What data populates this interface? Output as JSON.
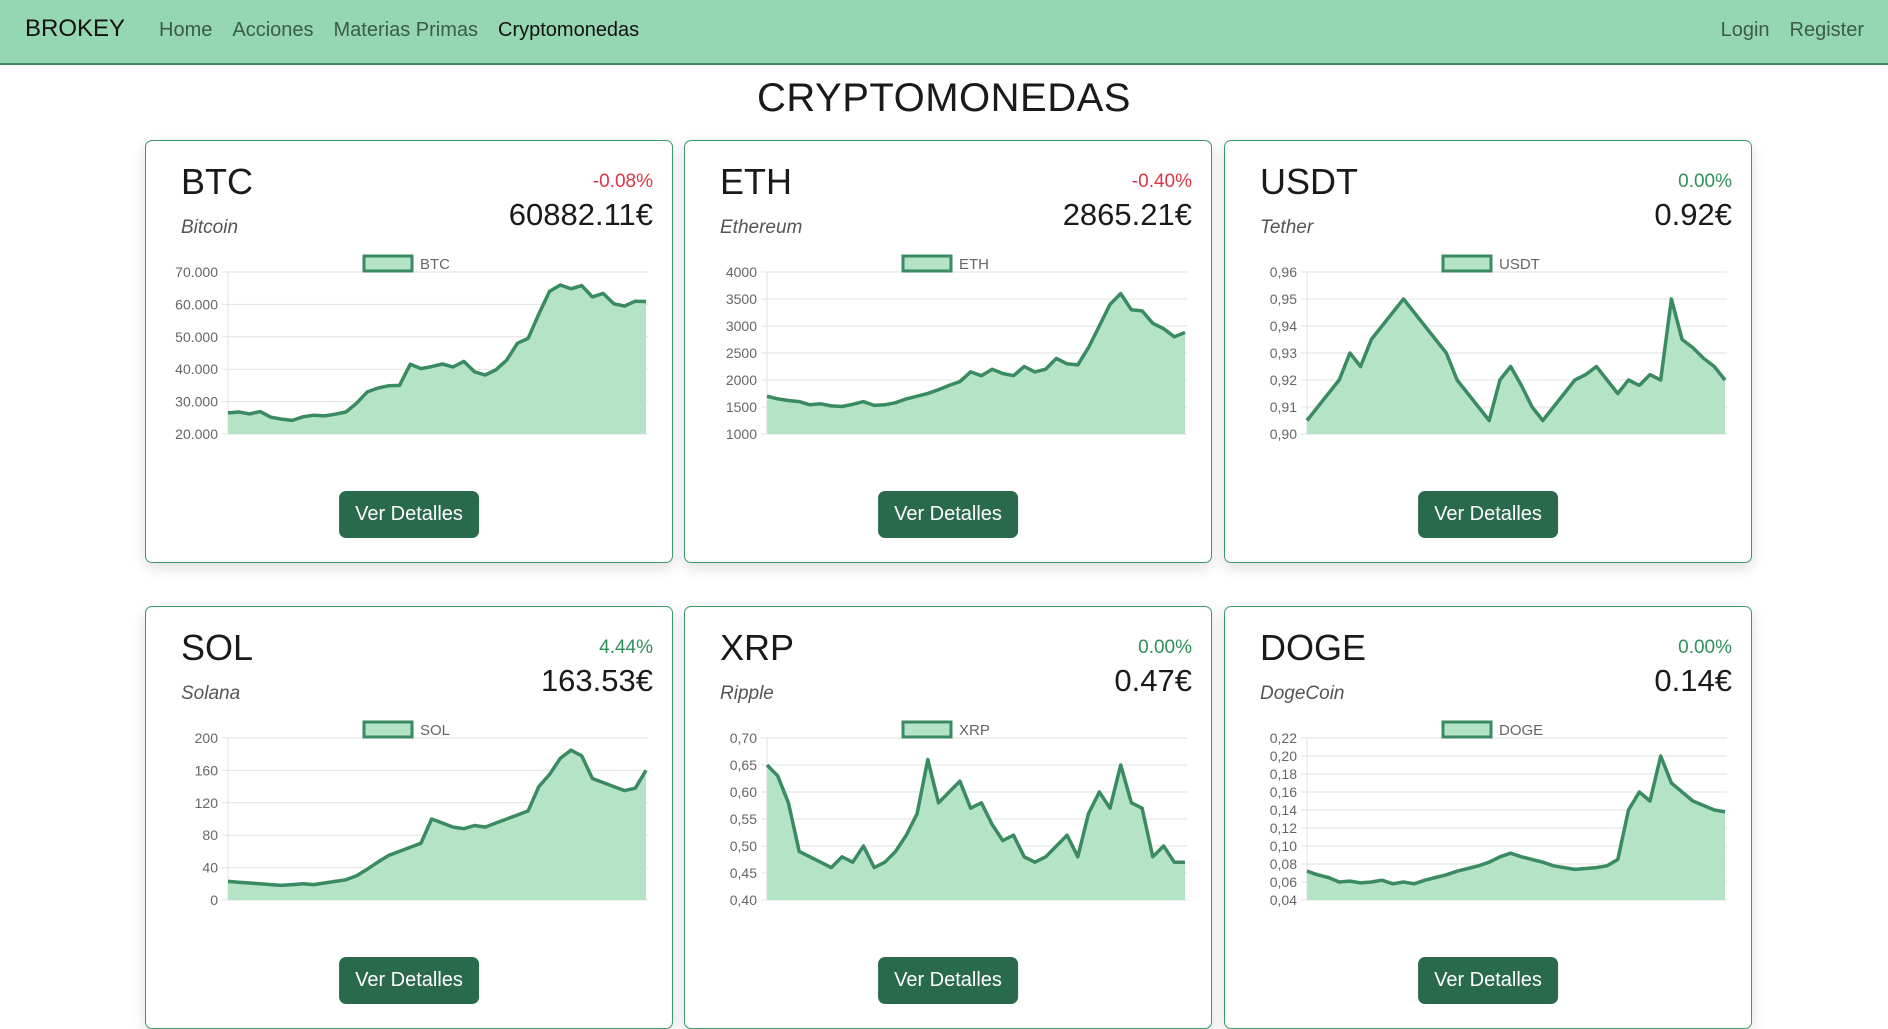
{
  "navbar": {
    "brand": "BROKEY",
    "links": [
      {
        "label": "Home"
      },
      {
        "label": "Acciones"
      },
      {
        "label": "Materias Primas"
      },
      {
        "label": "Cryptomonedas"
      }
    ],
    "right_links": [
      {
        "label": "Login"
      },
      {
        "label": "Register"
      }
    ]
  },
  "page": {
    "title": "CRYPTOMONEDAS"
  },
  "colors": {
    "accent": "#2a6a4c",
    "navbar": "#96d7b3",
    "line": "#3a8a62",
    "fill": "#b4e3c6",
    "negative": "#dc3545",
    "positive": "#2f8f5a"
  },
  "cards": [
    {
      "symbol": "BTC",
      "name": "Bitcoin",
      "change": "-0.08%",
      "change_sign": "neg",
      "price": "60882.11€",
      "button": "Ver Detalles"
    },
    {
      "symbol": "ETH",
      "name": "Ethereum",
      "change": "-0.40%",
      "change_sign": "neg",
      "price": "2865.21€",
      "button": "Ver Detalles"
    },
    {
      "symbol": "USDT",
      "name": "Tether",
      "change": "0.00%",
      "change_sign": "pos",
      "price": "0.92€",
      "button": "Ver Detalles"
    },
    {
      "symbol": "SOL",
      "name": "Solana",
      "change": "4.44%",
      "change_sign": "pos",
      "price": "163.53€",
      "button": "Ver Detalles"
    },
    {
      "symbol": "XRP",
      "name": "Ripple",
      "change": "0.00%",
      "change_sign": "pos",
      "price": "0.47€",
      "button": "Ver Detalles"
    },
    {
      "symbol": "DOGE",
      "name": "DogeCoin",
      "change": "0.00%",
      "change_sign": "pos",
      "price": "0.14€",
      "button": "Ver Detalles"
    }
  ],
  "chart_data": [
    {
      "type": "area",
      "series": [
        {
          "name": "BTC",
          "values": [
            26500,
            26800,
            26200,
            26900,
            25200,
            24600,
            24200,
            25300,
            25800,
            25600,
            26100,
            26800,
            29500,
            33000,
            34200,
            34900,
            35000,
            41500,
            40200,
            40800,
            41600,
            40700,
            42400,
            39200,
            38200,
            39800,
            42800,
            48000,
            49500,
            57000,
            64000,
            66000,
            64800,
            65800,
            62300,
            63400,
            60200,
            59500,
            61000,
            60900
          ]
        }
      ],
      "ylim": [
        20000,
        70000
      ],
      "yticks": [
        "20.000",
        "30.000",
        "40.000",
        "50.000",
        "60.000",
        "70.000"
      ]
    },
    {
      "type": "area",
      "series": [
        {
          "name": "ETH",
          "values": [
            1700,
            1650,
            1620,
            1600,
            1540,
            1560,
            1520,
            1510,
            1550,
            1600,
            1530,
            1540,
            1580,
            1650,
            1700,
            1750,
            1820,
            1900,
            1970,
            2150,
            2080,
            2200,
            2120,
            2080,
            2250,
            2150,
            2200,
            2400,
            2300,
            2280,
            2600,
            3000,
            3400,
            3600,
            3300,
            3280,
            3050,
            2950,
            2800,
            2880
          ]
        }
      ],
      "ylim": [
        1000,
        4000
      ],
      "yticks": [
        "1000",
        "1500",
        "2000",
        "2500",
        "3000",
        "3500",
        "4000"
      ]
    },
    {
      "type": "area",
      "series": [
        {
          "name": "USDT",
          "values": [
            0.905,
            0.91,
            0.915,
            0.92,
            0.93,
            0.925,
            0.935,
            0.94,
            0.945,
            0.95,
            0.945,
            0.94,
            0.935,
            0.93,
            0.92,
            0.915,
            0.91,
            0.905,
            0.92,
            0.925,
            0.918,
            0.91,
            0.905,
            0.91,
            0.915,
            0.92,
            0.922,
            0.925,
            0.92,
            0.915,
            0.92,
            0.918,
            0.922,
            0.92,
            0.95,
            0.935,
            0.932,
            0.928,
            0.925,
            0.92
          ]
        }
      ],
      "ylim": [
        0.9,
        0.96
      ],
      "yticks": [
        "0,90",
        "0,91",
        "0,92",
        "0,93",
        "0,94",
        "0,95",
        "0,96"
      ]
    },
    {
      "type": "area",
      "series": [
        {
          "name": "SOL",
          "values": [
            23,
            22,
            21,
            20,
            19,
            18,
            19,
            20,
            19,
            21,
            23,
            25,
            30,
            38,
            47,
            55,
            60,
            65,
            70,
            100,
            95,
            90,
            88,
            92,
            90,
            95,
            100,
            105,
            110,
            140,
            155,
            175,
            185,
            178,
            150,
            145,
            140,
            135,
            138,
            160
          ]
        }
      ],
      "ylim": [
        0,
        200
      ],
      "yticks": [
        "0",
        "40",
        "80",
        "120",
        "160",
        "200"
      ]
    },
    {
      "type": "area",
      "series": [
        {
          "name": "XRP",
          "values": [
            0.65,
            0.63,
            0.58,
            0.49,
            0.48,
            0.47,
            0.46,
            0.48,
            0.47,
            0.5,
            0.46,
            0.47,
            0.49,
            0.52,
            0.56,
            0.66,
            0.58,
            0.6,
            0.62,
            0.57,
            0.58,
            0.54,
            0.51,
            0.52,
            0.48,
            0.47,
            0.48,
            0.5,
            0.52,
            0.48,
            0.56,
            0.6,
            0.57,
            0.65,
            0.58,
            0.57,
            0.48,
            0.5,
            0.47,
            0.47
          ]
        }
      ],
      "ylim": [
        0.4,
        0.7
      ],
      "yticks": [
        "0,40",
        "0,45",
        "0,50",
        "0,55",
        "0,60",
        "0,65",
        "0,70"
      ]
    },
    {
      "type": "area",
      "series": [
        {
          "name": "DOGE",
          "values": [
            0.072,
            0.068,
            0.065,
            0.06,
            0.061,
            0.059,
            0.06,
            0.062,
            0.058,
            0.06,
            0.058,
            0.062,
            0.065,
            0.068,
            0.072,
            0.075,
            0.078,
            0.082,
            0.088,
            0.092,
            0.088,
            0.085,
            0.082,
            0.078,
            0.076,
            0.074,
            0.075,
            0.076,
            0.078,
            0.085,
            0.14,
            0.16,
            0.15,
            0.2,
            0.17,
            0.16,
            0.15,
            0.145,
            0.14,
            0.138
          ]
        }
      ],
      "ylim": [
        0.04,
        0.22
      ],
      "yticks": [
        "0,04",
        "0,06",
        "0,08",
        "0,10",
        "0,12",
        "0,14",
        "0,16",
        "0,18",
        "0,20",
        "0,22"
      ]
    }
  ]
}
